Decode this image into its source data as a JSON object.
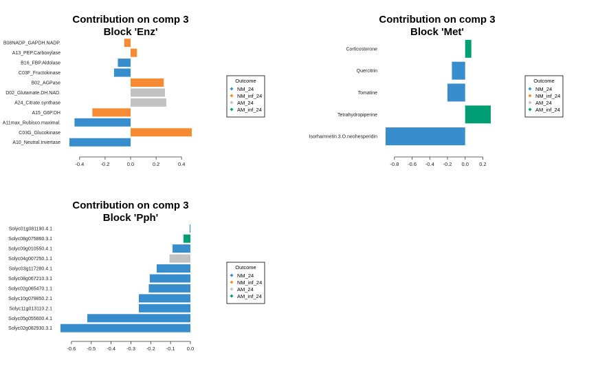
{
  "legend": {
    "title": "Outcome",
    "items": [
      {
        "label": "NM_24",
        "color": "#388ECC"
      },
      {
        "label": "NM_inf_24",
        "color": "#F68B33"
      },
      {
        "label": "AM_24",
        "color": "#C2C2C2"
      },
      {
        "label": "AM_inf_24",
        "color": "#009E73"
      }
    ]
  },
  "chart_data": [
    {
      "type": "bar",
      "orientation": "horizontal",
      "title": [
        "Contribution on comp 3",
        "Block 'Enz'"
      ],
      "xlim": [
        -0.48,
        0.48
      ],
      "xticks": [
        -0.4,
        -0.2,
        0.0,
        0.2,
        0.4
      ],
      "xtick_labels": [
        "-0.4",
        "-0.2",
        "0.0",
        "0.2",
        "0.4"
      ],
      "legend_position": "right",
      "bars": [
        {
          "label": "B08NADP_GAPDH.NADP.",
          "value": -0.05,
          "color": "#F68B33"
        },
        {
          "label": "A13_PEP.Carboxylase",
          "value": 0.05,
          "color": "#F68B33"
        },
        {
          "label": "B16_FBP.Aldolase",
          "value": -0.1,
          "color": "#388ECC"
        },
        {
          "label": "C03F_Fructokinase",
          "value": -0.13,
          "color": "#388ECC"
        },
        {
          "label": "B02_AGPase",
          "value": 0.26,
          "color": "#F68B33"
        },
        {
          "label": "D02_Glutamate.DH.NAD.",
          "value": 0.27,
          "color": "#C2C2C2"
        },
        {
          "label": "A24_Citrate.synthase",
          "value": 0.28,
          "color": "#C2C2C2"
        },
        {
          "label": "A15_G6P.DH",
          "value": -0.3,
          "color": "#F68B33"
        },
        {
          "label": "A11max_Rubisco.maximal.",
          "value": -0.44,
          "color": "#388ECC"
        },
        {
          "label": "C03G_Glucokinase",
          "value": 0.48,
          "color": "#F68B33"
        },
        {
          "label": "A10_Neutral.Invertase",
          "value": -0.48,
          "color": "#388ECC"
        }
      ]
    },
    {
      "type": "bar",
      "orientation": "horizontal",
      "title": [
        "Contribution on comp 3",
        "Block 'Met'"
      ],
      "xlim": [
        -0.9,
        0.29
      ],
      "xticks": [
        -0.8,
        -0.6,
        -0.4,
        -0.2,
        0.0,
        0.2
      ],
      "xtick_labels": [
        "-0.8",
        "-0.6",
        "-0.4",
        "-0.2",
        "0.0",
        "0.2"
      ],
      "legend_position": "right",
      "bars": [
        {
          "label": "Corticosterone",
          "value": 0.07,
          "color": "#009E73"
        },
        {
          "label": "Quercitrin",
          "value": -0.15,
          "color": "#388ECC"
        },
        {
          "label": "Tomatine",
          "value": -0.2,
          "color": "#388ECC"
        },
        {
          "label": "Tetrahydropiperine",
          "value": 0.29,
          "color": "#009E73"
        },
        {
          "label": "Isorhamnetin.3.O.neohesperidin",
          "value": -0.9,
          "color": "#388ECC"
        }
      ]
    },
    {
      "type": "bar",
      "orientation": "horizontal",
      "title": [
        "Contribution on comp 3",
        "Block 'Pph'"
      ],
      "xlim": [
        -0.655,
        0.0
      ],
      "xticks": [
        -0.6,
        -0.5,
        -0.4,
        -0.3,
        -0.2,
        -0.1,
        0.0
      ],
      "xtick_labels": [
        "-0.6",
        "-0.5",
        "-0.4",
        "-0.3",
        "-0.2",
        "-0.1",
        "0.0"
      ],
      "legend_position": "right",
      "bars": [
        {
          "label": "Solyc01g081190.4.1",
          "value": -0.004,
          "color": "#388ECC"
        },
        {
          "label": "Solyc08g075860.3.1",
          "value": -0.035,
          "color": "#009E73"
        },
        {
          "label": "Solyc09g010550.4.1",
          "value": -0.09,
          "color": "#388ECC"
        },
        {
          "label": "Solyc04g007250.1.1",
          "value": -0.105,
          "color": "#C2C2C2"
        },
        {
          "label": "Solyc03g117280.4.1",
          "value": -0.17,
          "color": "#388ECC"
        },
        {
          "label": "Solyc08g067210.3.1",
          "value": -0.205,
          "color": "#388ECC"
        },
        {
          "label": "Solyc02g065470.1.1",
          "value": -0.21,
          "color": "#388ECC"
        },
        {
          "label": "Solyc10g079850.2.1",
          "value": -0.26,
          "color": "#388ECC"
        },
        {
          "label": "Solyc11g013110.2.1",
          "value": -0.26,
          "color": "#388ECC"
        },
        {
          "label": "Solyc05g055600.4.1",
          "value": -0.52,
          "color": "#388ECC"
        },
        {
          "label": "Solyc02g082930.3.1",
          "value": -0.655,
          "color": "#388ECC"
        }
      ]
    }
  ]
}
